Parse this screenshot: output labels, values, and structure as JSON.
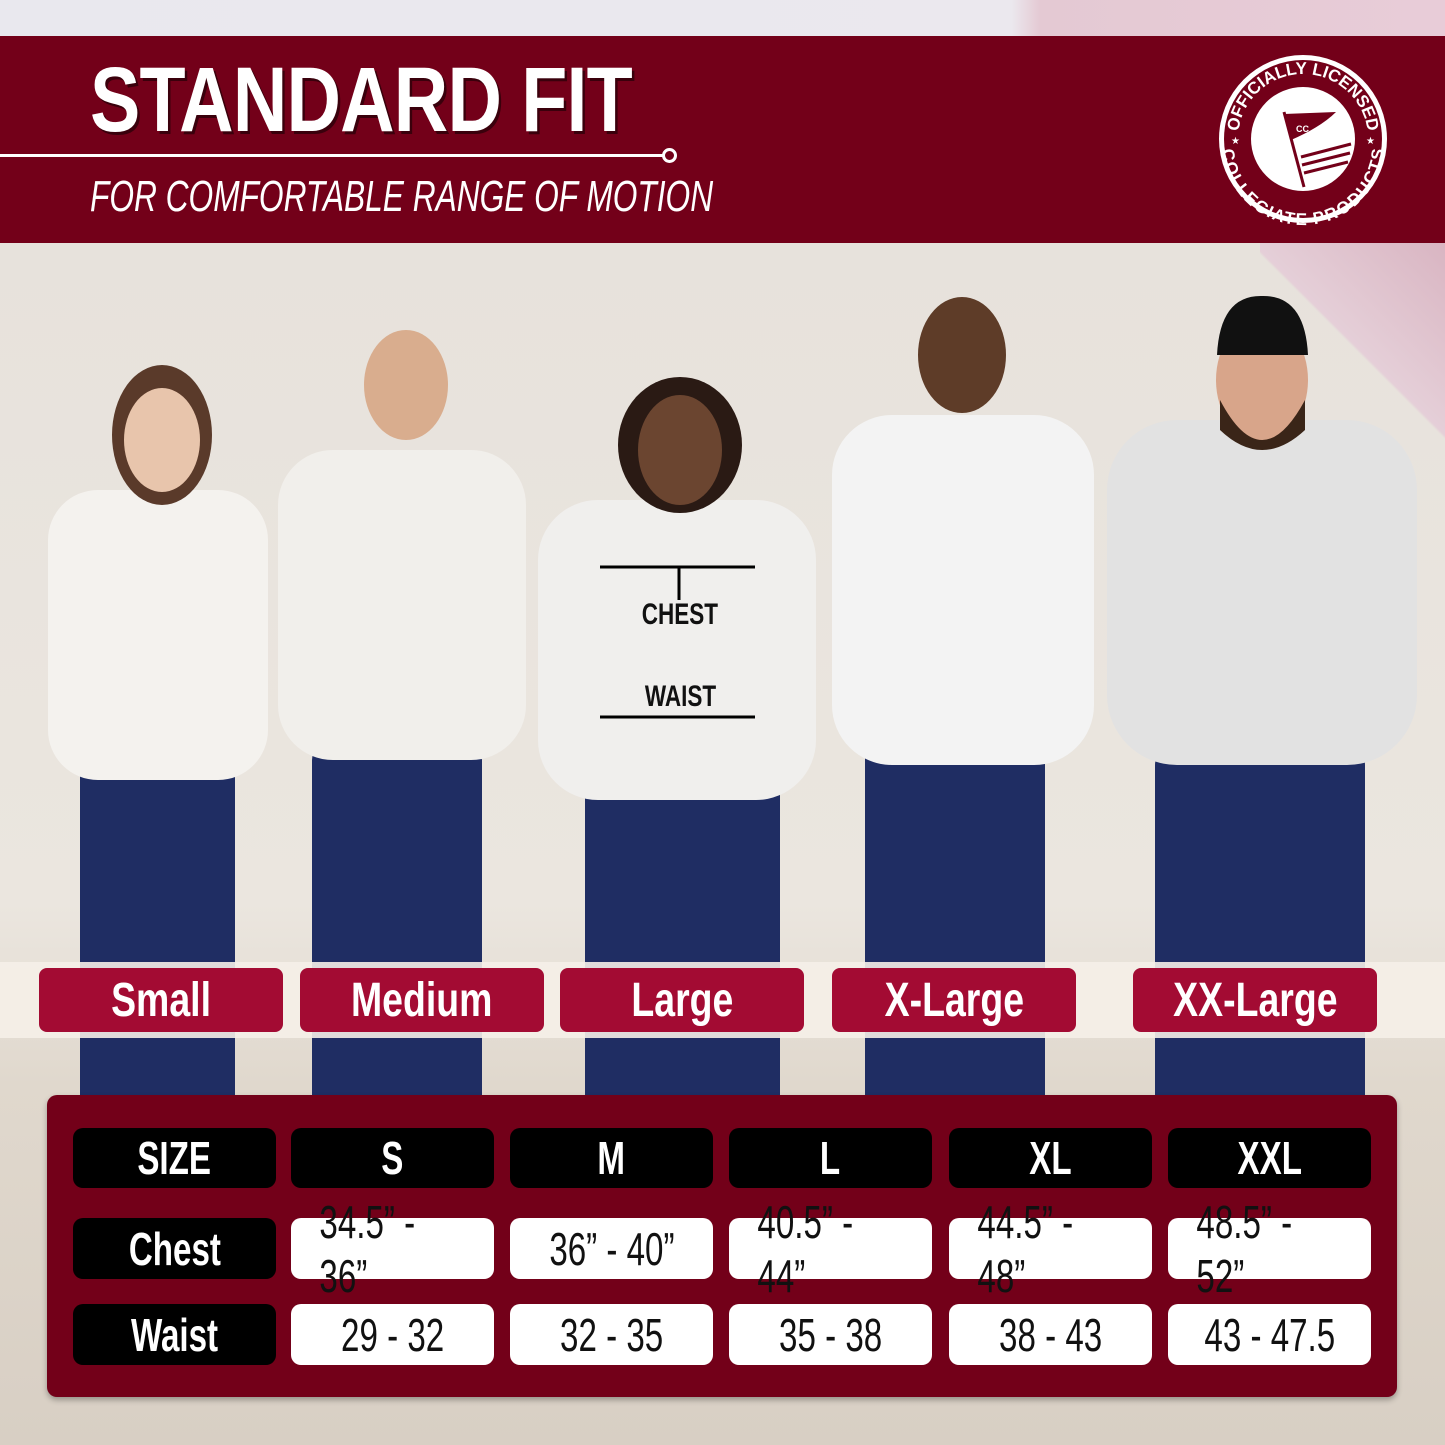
{
  "header": {
    "title": "STANDARD FIT",
    "subtitle": "FOR COMFORTABLE RANGE OF MOTION"
  },
  "seal": {
    "top_text": "OFFICIALLY LICENSED",
    "bottom_text": "COLLEGIATE PRODUCTS",
    "flag_text": "CC"
  },
  "measure_labels": {
    "chest": "CHEST",
    "waist": "WAIST"
  },
  "size_labels": [
    "Small",
    "Medium",
    "Large",
    "X-Large",
    "XX-Large"
  ],
  "table": {
    "header": [
      "SIZE",
      "S",
      "M",
      "L",
      "XL",
      "XXL"
    ],
    "rows": [
      {
        "label": "Chest",
        "values": [
          "34.5” - 36”",
          "36” - 40”",
          "40.5” - 44”",
          "44.5” - 48”",
          "48.5” - 52”"
        ]
      },
      {
        "label": "Waist",
        "values": [
          "29 - 32",
          "32 - 35",
          "35 - 38",
          "38 - 43",
          "43 - 47.5"
        ]
      }
    ]
  },
  "colors": {
    "brand": "#730019",
    "pill": "#a30b33",
    "hoodie": "#f2f0ec",
    "jeans": "#1f2d63"
  }
}
